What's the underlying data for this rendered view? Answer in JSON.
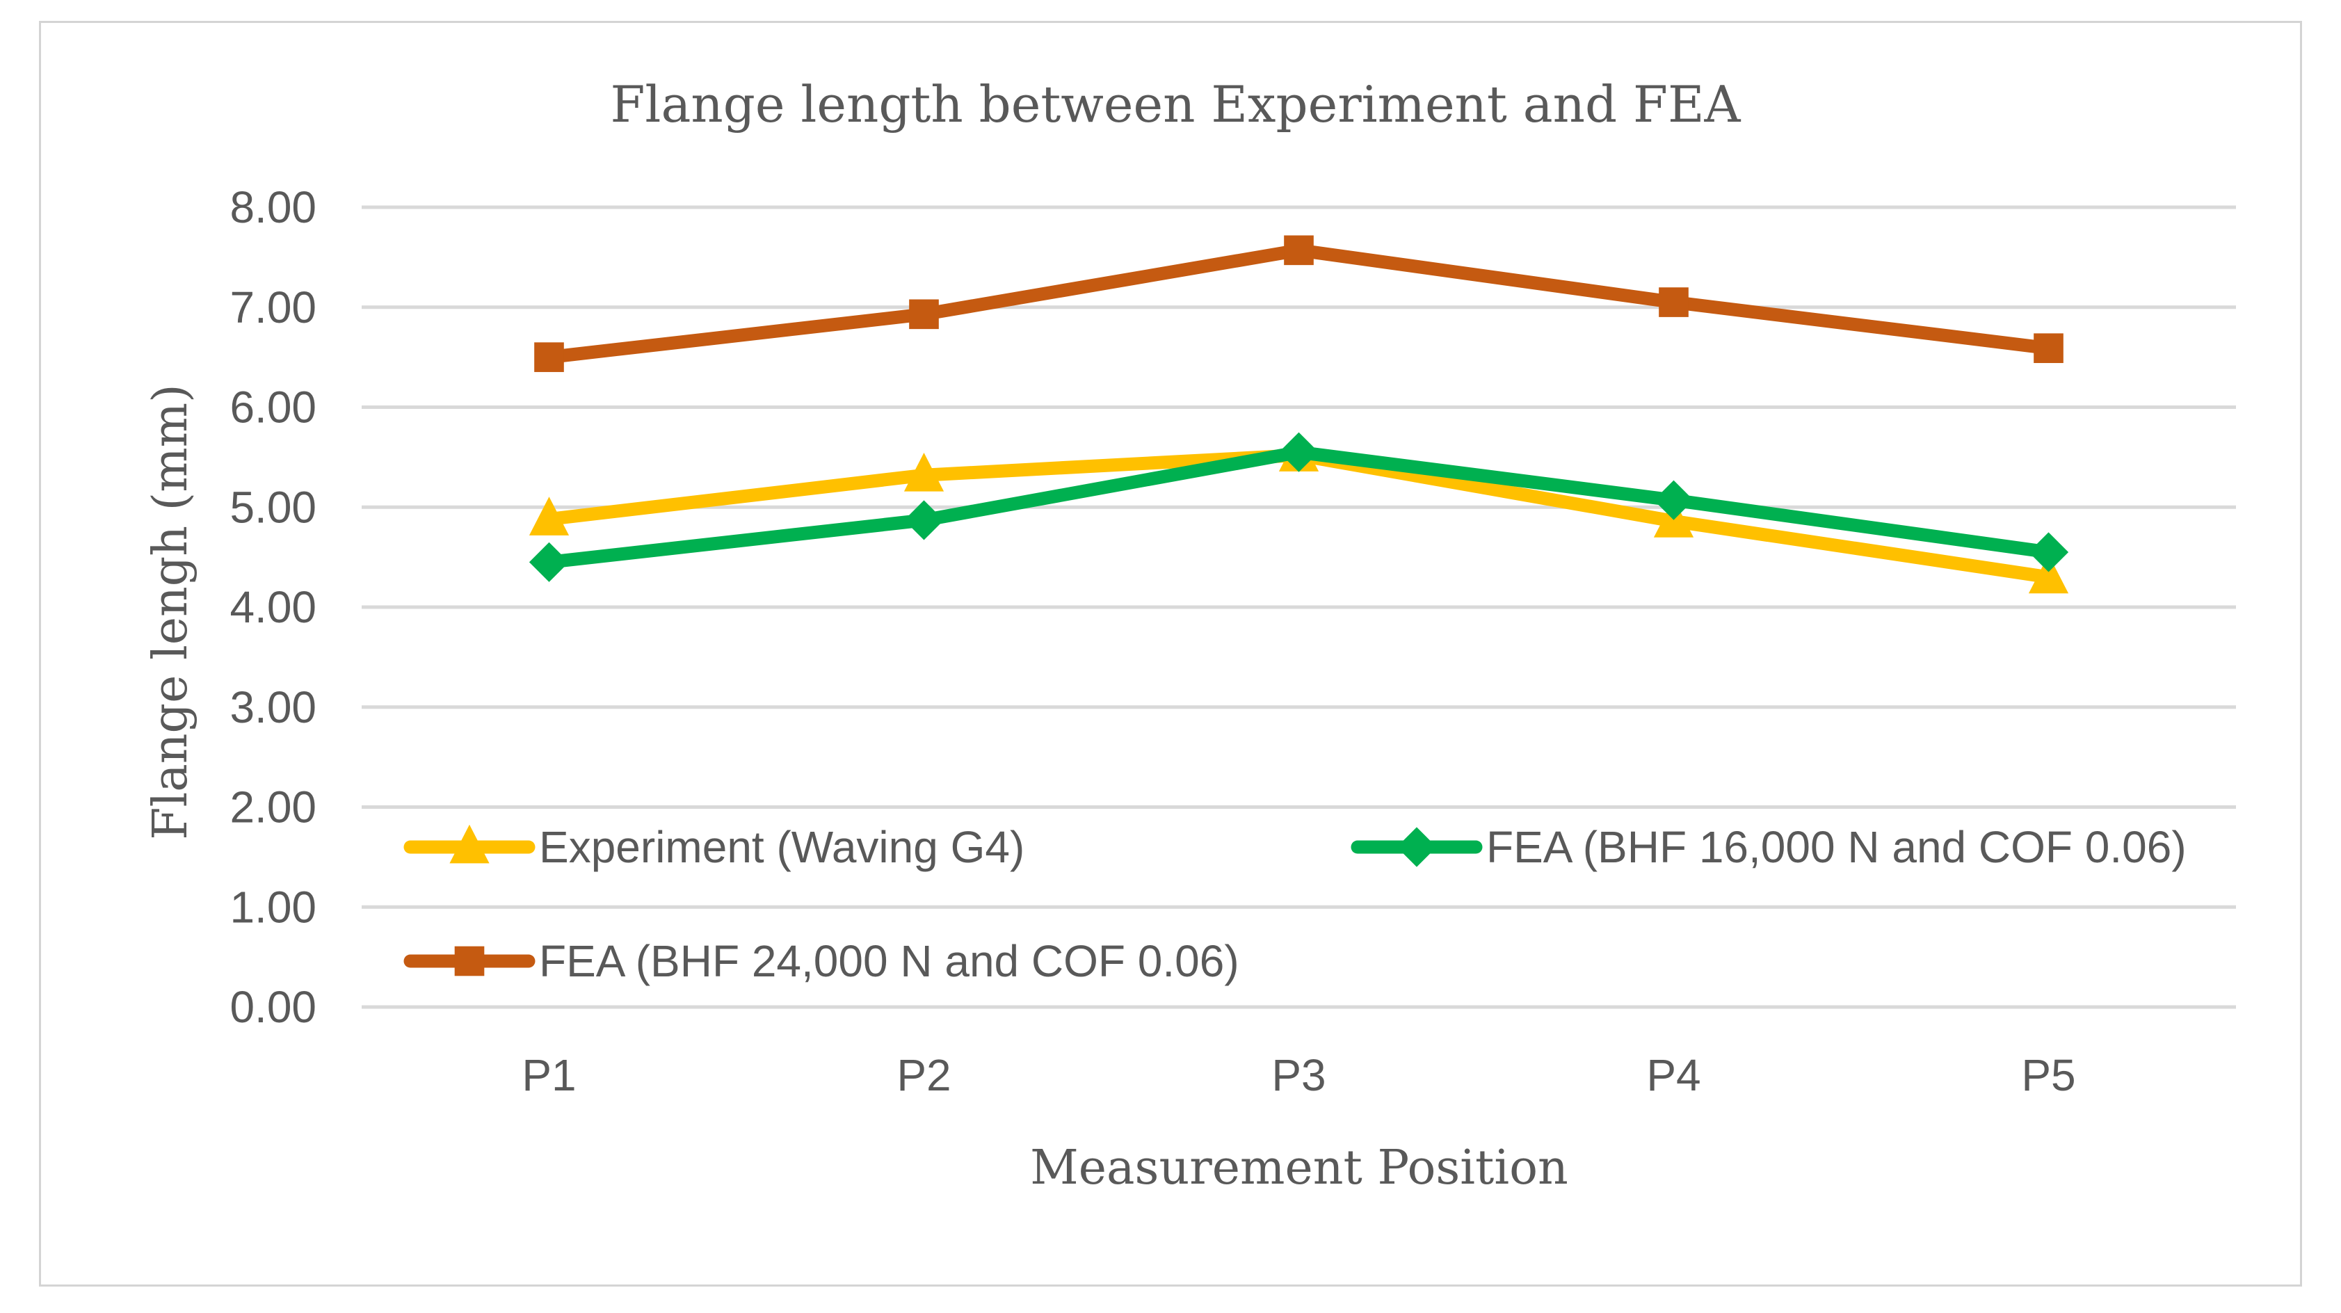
{
  "chart_data": {
    "type": "line",
    "title": "Flange length between Experiment and FEA",
    "xlabel": "Measurement Position",
    "ylabel": "Flange lengh (mm)",
    "categories": [
      "P1",
      "P2",
      "P3",
      "P4",
      "P5"
    ],
    "ylim": [
      0,
      8
    ],
    "ytick_labels": [
      "0.00",
      "1.00",
      "2.00",
      "3.00",
      "4.00",
      "5.00",
      "6.00",
      "7.00",
      "8.00"
    ],
    "grid": true,
    "legend_position": "inside-bottom",
    "series": [
      {
        "name": "Experiment (Waving G4)",
        "marker": "triangle",
        "color": "#FFC000",
        "values": [
          4.88,
          5.32,
          5.52,
          4.86,
          4.3
        ]
      },
      {
        "name": "FEA (BHF 16,000 N and COF 0.06)",
        "marker": "diamond",
        "color": "#00B050",
        "values": [
          4.45,
          4.87,
          5.55,
          5.07,
          4.55
        ]
      },
      {
        "name": "FEA (BHF 24,000 N and COF 0.06)",
        "marker": "square",
        "color": "#C55A11",
        "values": [
          6.5,
          6.93,
          7.57,
          7.05,
          6.59
        ]
      }
    ]
  }
}
